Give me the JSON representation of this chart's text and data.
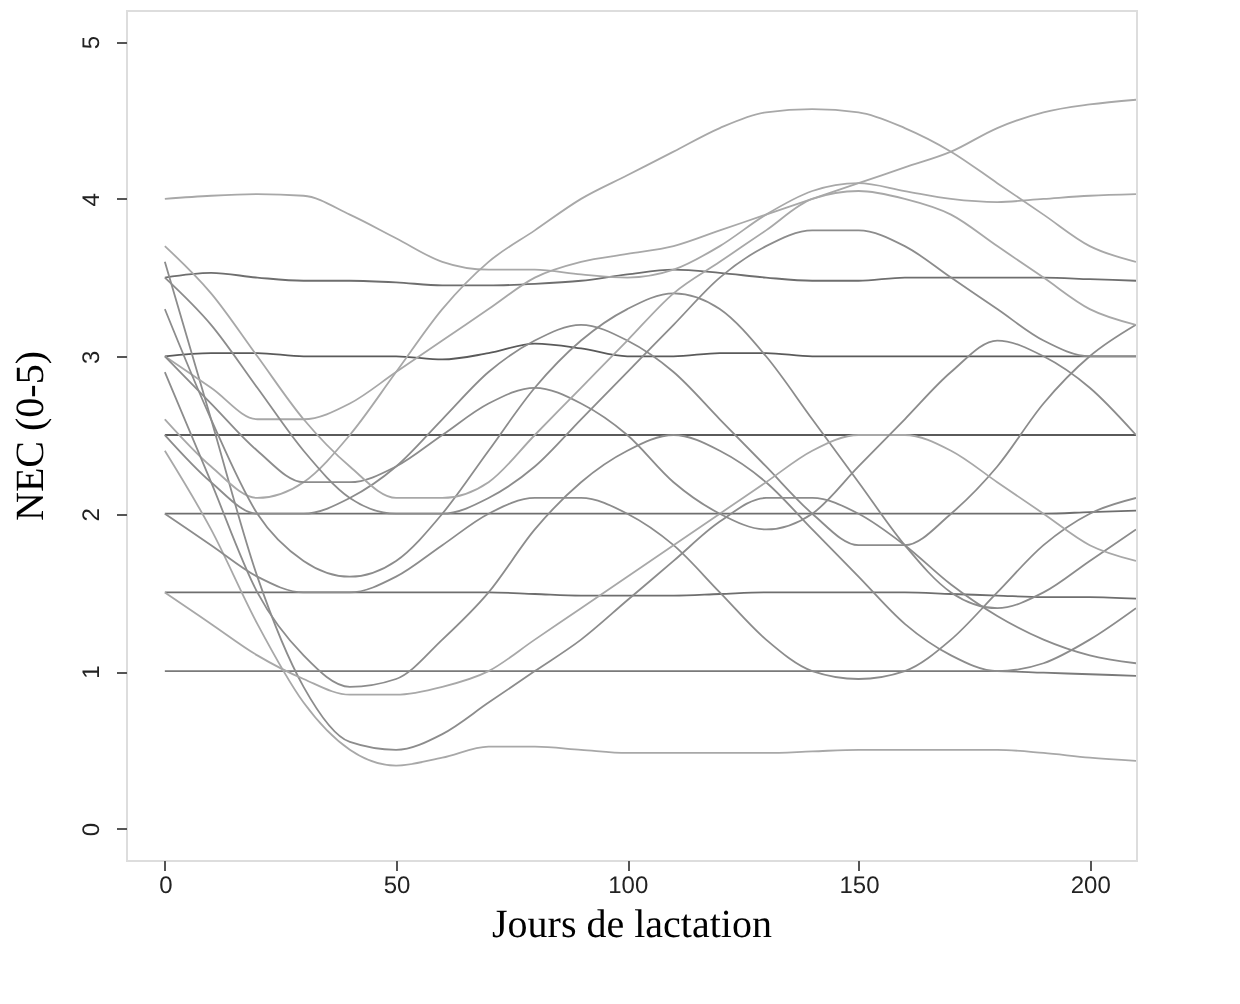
{
  "chart_data": {
    "type": "line",
    "xlabel": "Jours de lactation",
    "ylabel": "NEC (0-5)",
    "x": [
      0,
      10,
      20,
      30,
      40,
      50,
      60,
      70,
      80,
      90,
      100,
      110,
      120,
      130,
      140,
      150,
      160,
      170,
      180,
      190,
      200,
      210
    ],
    "xlim": [
      -8.4,
      210
    ],
    "ylim": [
      -0.2,
      5.2
    ],
    "xticks": [
      0,
      50,
      100,
      150,
      200
    ],
    "yticks": [
      0,
      1,
      2,
      3,
      4,
      5
    ],
    "grid": false,
    "legend": false,
    "marker": "none",
    "line_style": "solid",
    "series": [
      {
        "color": "#7a7a7a",
        "values": [
          1,
          1,
          1,
          1,
          1,
          1,
          1,
          1,
          1,
          1,
          1,
          1,
          1,
          1,
          1,
          1,
          1,
          1,
          1,
          0.99,
          0.98,
          0.97
        ]
      },
      {
        "color": "#6e6e6e",
        "values": [
          1.5,
          1.5,
          1.5,
          1.5,
          1.5,
          1.5,
          1.5,
          1.5,
          1.49,
          1.48,
          1.48,
          1.48,
          1.49,
          1.5,
          1.5,
          1.5,
          1.5,
          1.49,
          1.48,
          1.47,
          1.47,
          1.46
        ]
      },
      {
        "color": "#6e6e6e",
        "values": [
          2,
          2,
          2,
          2,
          2,
          2,
          2,
          2,
          2,
          2,
          2,
          2,
          2,
          2,
          2,
          2,
          2,
          2,
          2,
          2,
          2.01,
          2.02
        ]
      },
      {
        "color": "#5a5a5a",
        "values": [
          2.5,
          2.5,
          2.5,
          2.5,
          2.5,
          2.5,
          2.5,
          2.5,
          2.5,
          2.5,
          2.5,
          2.5,
          2.5,
          2.5,
          2.5,
          2.5,
          2.5,
          2.5,
          2.5,
          2.5,
          2.5,
          2.5
        ]
      },
      {
        "color": "#5a5a5a",
        "values": [
          3,
          3.02,
          3.02,
          3,
          3,
          3,
          2.98,
          3.02,
          3.08,
          3.05,
          3,
          3,
          3.02,
          3.02,
          3,
          3,
          3,
          3,
          3,
          3,
          3,
          3
        ]
      },
      {
        "color": "#6e6e6e",
        "values": [
          3.5,
          3.53,
          3.5,
          3.48,
          3.48,
          3.47,
          3.45,
          3.45,
          3.46,
          3.48,
          3.52,
          3.55,
          3.53,
          3.5,
          3.48,
          3.48,
          3.5,
          3.5,
          3.5,
          3.5,
          3.49,
          3.48
        ]
      },
      {
        "color": "#a8a8a8",
        "values": [
          4,
          4.02,
          4.03,
          4.02,
          3.9,
          3.75,
          3.6,
          3.55,
          3.55,
          3.52,
          3.5,
          3.55,
          3.7,
          3.9,
          4.05,
          4.1,
          4.05,
          4.0,
          3.98,
          4.0,
          4.02,
          4.03
        ]
      },
      {
        "color": "#a8a8a8",
        "values": [
          2.4,
          1.9,
          1.3,
          0.8,
          0.5,
          0.4,
          0.45,
          0.52,
          0.52,
          0.5,
          0.48,
          0.48,
          0.48,
          0.48,
          0.49,
          0.5,
          0.5,
          0.5,
          0.5,
          0.48,
          0.45,
          0.43
        ]
      },
      {
        "color": "#8c8c8c",
        "values": [
          3.6,
          2.6,
          1.6,
          0.9,
          0.55,
          0.5,
          0.6,
          0.8,
          1.0,
          1.2,
          1.45,
          1.7,
          1.95,
          2.1,
          2.1,
          2.0,
          1.8,
          1.55,
          1.35,
          1.2,
          1.1,
          1.05
        ]
      },
      {
        "color": "#a8a8a8",
        "values": [
          2.6,
          2.3,
          2.1,
          2.2,
          2.5,
          2.9,
          3.3,
          3.6,
          3.8,
          4.0,
          4.15,
          4.3,
          4.45,
          4.55,
          4.57,
          4.55,
          4.45,
          4.3,
          4.1,
          3.9,
          3.7,
          3.6
        ]
      },
      {
        "color": "#a8a8a8",
        "values": [
          3.0,
          2.8,
          2.6,
          2.6,
          2.7,
          2.9,
          3.1,
          3.3,
          3.5,
          3.6,
          3.65,
          3.7,
          3.8,
          3.9,
          4.0,
          4.1,
          4.2,
          4.3,
          4.45,
          4.55,
          4.6,
          4.63
        ]
      },
      {
        "color": "#8c8c8c",
        "values": [
          3.3,
          2.6,
          2.0,
          1.7,
          1.6,
          1.7,
          2.0,
          2.4,
          2.8,
          3.1,
          3.3,
          3.4,
          3.3,
          3.0,
          2.6,
          2.2,
          1.8,
          1.5,
          1.4,
          1.5,
          1.7,
          1.9
        ]
      },
      {
        "color": "#8c8c8c",
        "values": [
          2.9,
          2.2,
          1.5,
          1.1,
          0.9,
          0.95,
          1.2,
          1.5,
          1.9,
          2.2,
          2.4,
          2.5,
          2.4,
          2.2,
          1.9,
          1.6,
          1.3,
          1.1,
          1.0,
          1.05,
          1.2,
          1.4
        ]
      },
      {
        "color": "#8c8c8c",
        "values": [
          2.5,
          2.2,
          2.0,
          2.0,
          2.1,
          2.3,
          2.6,
          2.9,
          3.1,
          3.2,
          3.1,
          2.9,
          2.6,
          2.3,
          2.0,
          1.8,
          1.8,
          2.0,
          2.3,
          2.7,
          3.0,
          3.2
        ]
      },
      {
        "color": "#8c8c8c",
        "values": [
          3.5,
          3.2,
          2.8,
          2.4,
          2.1,
          2.0,
          2.0,
          2.1,
          2.3,
          2.6,
          2.9,
          3.2,
          3.5,
          3.7,
          3.8,
          3.8,
          3.7,
          3.5,
          3.3,
          3.1,
          3.0,
          3.0
        ]
      },
      {
        "color": "#8c8c8c",
        "values": [
          2.0,
          1.8,
          1.6,
          1.5,
          1.5,
          1.6,
          1.8,
          2.0,
          2.1,
          2.1,
          2.0,
          1.8,
          1.5,
          1.2,
          1.0,
          0.95,
          1.0,
          1.2,
          1.5,
          1.8,
          2.0,
          2.1
        ]
      },
      {
        "color": "#a8a8a8",
        "values": [
          1.5,
          1.3,
          1.1,
          0.95,
          0.85,
          0.85,
          0.9,
          1.0,
          1.2,
          1.4,
          1.6,
          1.8,
          2.0,
          2.2,
          2.4,
          2.5,
          2.5,
          2.4,
          2.2,
          2.0,
          1.8,
          1.7
        ]
      },
      {
        "color": "#8c8c8c",
        "values": [
          3.0,
          2.7,
          2.4,
          2.2,
          2.2,
          2.3,
          2.5,
          2.7,
          2.8,
          2.7,
          2.5,
          2.2,
          2.0,
          1.9,
          2.0,
          2.3,
          2.6,
          2.9,
          3.1,
          3.0,
          2.8,
          2.5
        ]
      },
      {
        "color": "#a8a8a8",
        "values": [
          3.7,
          3.4,
          3.0,
          2.6,
          2.3,
          2.1,
          2.1,
          2.2,
          2.5,
          2.8,
          3.1,
          3.4,
          3.6,
          3.8,
          4.0,
          4.05,
          4.0,
          3.9,
          3.7,
          3.5,
          3.3,
          3.2
        ]
      }
    ]
  }
}
